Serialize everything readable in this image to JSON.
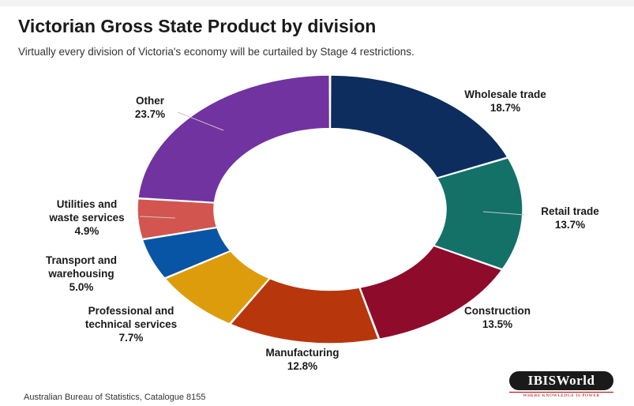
{
  "header": {
    "title": "Victorian Gross State Product by division",
    "subtitle": "Virtually every division of Victoria's economy will be curtailed by Stage 4 restrictions."
  },
  "footer": {
    "source": "Australian Bureau of Statistics, Catalogue 8155",
    "logo_text": "IBISWorld",
    "logo_tagline": "WHERE KNOWLEDGE IS POWER"
  },
  "chart_data": {
    "type": "pie",
    "variant": "donut",
    "title": "Victorian Gross State Product by division",
    "subtitle": "Virtually every division of Victoria's economy will be curtailed by Stage 4 restrictions.",
    "unit": "%",
    "categories": [
      "Wholesale trade",
      "Retail trade",
      "Construction",
      "Manufacturing",
      "Professional and technical services",
      "Transport and warehousing",
      "Utilities and waste services",
      "Other"
    ],
    "values": [
      18.7,
      13.7,
      13.5,
      12.8,
      7.7,
      5.0,
      4.9,
      23.7
    ],
    "value_labels": [
      "18.7%",
      "13.7%",
      "13.5%",
      "12.8%",
      "7.7%",
      "5.0%",
      "4.9%",
      "23.7%"
    ],
    "colors": [
      "#0c2d5e",
      "#137168",
      "#8e0b2c",
      "#b8360c",
      "#dd9c0c",
      "#0855a6",
      "#d2554f",
      "#7133a0"
    ],
    "label_lines": [
      [
        "Wholesale trade"
      ],
      [
        "Retail trade"
      ],
      [
        "Construction"
      ],
      [
        "Manufacturing"
      ],
      [
        "Professional and",
        "technical services"
      ],
      [
        "Transport and",
        "warehousing"
      ],
      [
        "Utilities and",
        "waste services"
      ],
      [
        "Other"
      ]
    ],
    "legend": "none"
  }
}
